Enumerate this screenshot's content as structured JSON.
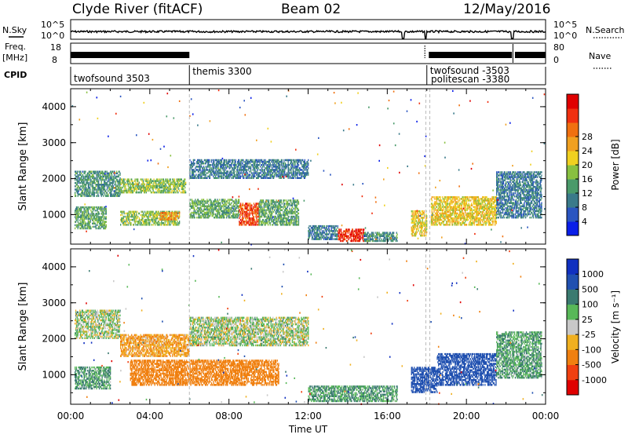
{
  "header": {
    "station": "Clyde River (fitACF)",
    "beam": "Beam 02",
    "date": "12/May/2016"
  },
  "strip_labels": {
    "nsky": "N.Sky",
    "freq_top": "Freq.",
    "freq_unit": "[MHz]",
    "cpid": "CPID",
    "nsearch": "N.Search",
    "nave": "Nave",
    "nsky_ticks": [
      "10^5",
      "10^0"
    ],
    "nsearch_ticks": [
      "10^5",
      "10^0"
    ],
    "freq_ticks": [
      "18",
      "8"
    ],
    "nave_ticks": [
      "80",
      "0"
    ]
  },
  "cpid_segments": [
    {
      "label": "twofsound 3503",
      "start_hour": 0
    },
    {
      "label": "themis 3300",
      "start_hour": 6
    },
    {
      "label": "twofsound -3503",
      "start_hour": 18
    },
    {
      "label": "politescan -3380",
      "start_hour": 18.05
    }
  ],
  "chart_data": [
    {
      "type": "heatmap",
      "parameter": "power",
      "ylabel": "Slant Range [km]",
      "ylim": [
        180,
        4500
      ],
      "yticks": [
        1000,
        2000,
        3000,
        4000
      ],
      "xlim": [
        0,
        24
      ],
      "colorbar": {
        "label": "Power [dB]",
        "range": [
          0,
          32
        ],
        "ticks": [
          "4",
          "8",
          "12",
          "16",
          "20",
          "24",
          "28"
        ],
        "colors": [
          "#0a1ee8",
          "#2a55c0",
          "#3a7a8a",
          "#4a9a6a",
          "#88c040",
          "#f0d020",
          "#f0a020",
          "#f07010",
          "#f03010",
          "#e00000"
        ]
      },
      "echo_regions": [
        {
          "t0": 0.2,
          "t1": 1.8,
          "r0": 600,
          "r1": 1200,
          "value": 12
        },
        {
          "t0": 0.2,
          "t1": 2.5,
          "r0": 1500,
          "r1": 2200,
          "value": 10
        },
        {
          "t0": 2.5,
          "t1": 5.8,
          "r0": 1600,
          "r1": 2000,
          "value": 14
        },
        {
          "t0": 2.5,
          "t1": 5.5,
          "r0": 700,
          "r1": 1100,
          "value": 14
        },
        {
          "t0": 4.5,
          "t1": 5.5,
          "r0": 850,
          "r1": 1050,
          "value": 22
        },
        {
          "t0": 6.0,
          "t1": 8.5,
          "r0": 900,
          "r1": 1400,
          "value": 12
        },
        {
          "t0": 8.5,
          "t1": 9.5,
          "r0": 700,
          "r1": 1300,
          "value": 26
        },
        {
          "t0": 9.5,
          "t1": 11.5,
          "r0": 700,
          "r1": 1400,
          "value": 12
        },
        {
          "t0": 6.0,
          "t1": 12.0,
          "r0": 2000,
          "r1": 2500,
          "value": 8
        },
        {
          "t0": 12.0,
          "t1": 13.5,
          "r0": 300,
          "r1": 700,
          "value": 8
        },
        {
          "t0": 13.5,
          "t1": 14.8,
          "r0": 250,
          "r1": 600,
          "value": 28
        },
        {
          "t0": 14.8,
          "t1": 16.5,
          "r0": 250,
          "r1": 500,
          "value": 10
        },
        {
          "t0": 17.2,
          "t1": 18.0,
          "r0": 400,
          "r1": 1100,
          "value": 18
        },
        {
          "t0": 18.2,
          "t1": 21.5,
          "r0": 700,
          "r1": 1500,
          "value": 18
        },
        {
          "t0": 21.5,
          "t1": 23.8,
          "r0": 900,
          "r1": 2200,
          "value": 8
        }
      ]
    },
    {
      "type": "heatmap",
      "parameter": "velocity",
      "ylabel": "Slant Range [km]",
      "ylim": [
        180,
        4500
      ],
      "yticks": [
        1000,
        2000,
        3000,
        4000
      ],
      "xlim": [
        0,
        24
      ],
      "xticks": [
        "00:00",
        "04:00",
        "08:00",
        "12:00",
        "16:00",
        "20:00",
        "00:00"
      ],
      "xlabel": "Time UT",
      "colorbar": {
        "label": "Velocity [m s⁻¹]",
        "ticks": [
          "1000",
          "500",
          "100",
          "25",
          "-25",
          "-100",
          "-500",
          "-1000"
        ],
        "colors": [
          "#1030c0",
          "#2050b0",
          "#3a7a70",
          "#58b858",
          "#c8c8c8",
          "#f0b020",
          "#f08010",
          "#f04010",
          "#e00000"
        ]
      },
      "echo_regions": [
        {
          "t0": 0.2,
          "t1": 2.5,
          "r0": 2000,
          "r1": 2800,
          "value": 25
        },
        {
          "t0": 2.5,
          "t1": 6.0,
          "r0": 1500,
          "r1": 2100,
          "value": -100
        },
        {
          "t0": 0.2,
          "t1": 2.0,
          "r0": 600,
          "r1": 1200,
          "value": 100
        },
        {
          "t0": 3.0,
          "t1": 10.5,
          "r0": 700,
          "r1": 1400,
          "value": -300
        },
        {
          "t0": 6.0,
          "t1": 12.0,
          "r0": 1800,
          "r1": 2600,
          "value": 25
        },
        {
          "t0": 12.0,
          "t1": 16.5,
          "r0": 250,
          "r1": 700,
          "value": 100
        },
        {
          "t0": 17.2,
          "t1": 18.5,
          "r0": 500,
          "r1": 1200,
          "value": 700
        },
        {
          "t0": 18.5,
          "t1": 21.5,
          "r0": 700,
          "r1": 1600,
          "value": 700
        },
        {
          "t0": 21.5,
          "t1": 23.8,
          "r0": 900,
          "r1": 2200,
          "value": 100
        }
      ]
    }
  ]
}
